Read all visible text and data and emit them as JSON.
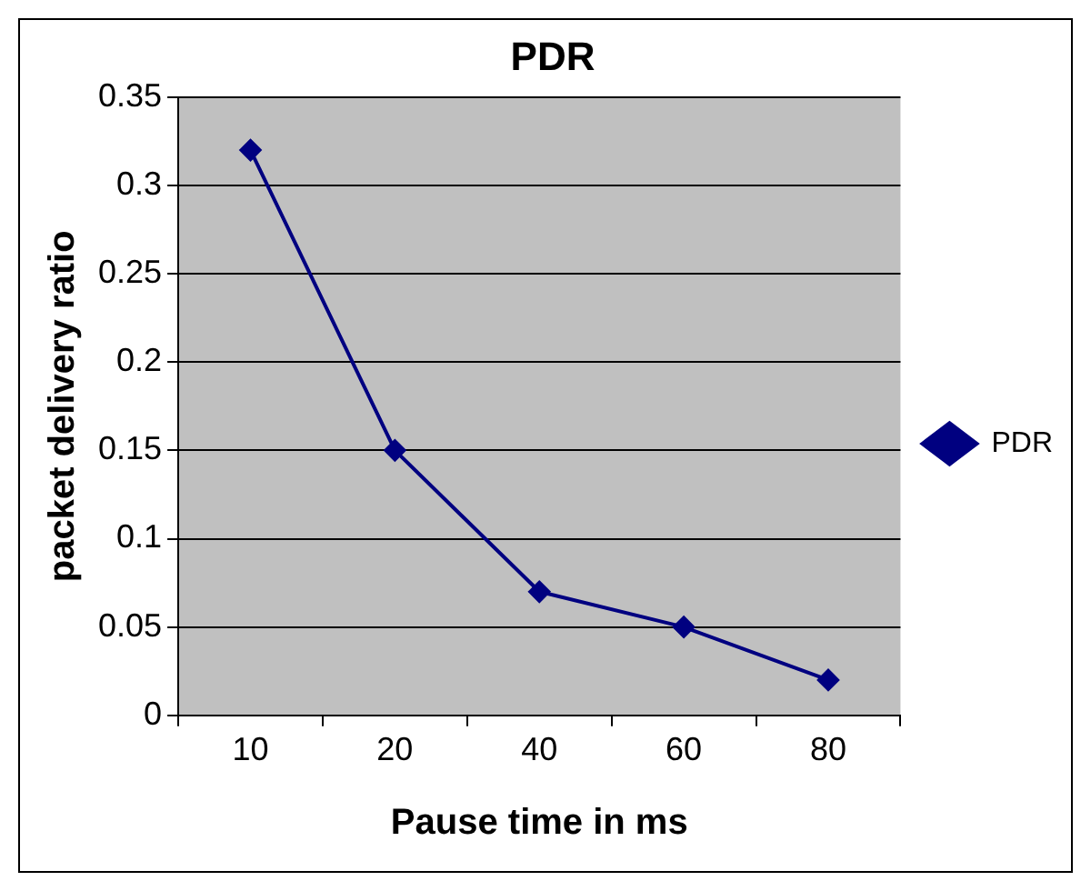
{
  "chart_data": {
    "type": "line",
    "title": "PDR",
    "xlabel": "Pause time in ms",
    "ylabel": "packet delivery ratio",
    "categories": [
      "10",
      "20",
      "40",
      "60",
      "80"
    ],
    "series": [
      {
        "name": "PDR",
        "color": "#000080",
        "values": [
          0.32,
          0.15,
          0.07,
          0.05,
          0.02
        ]
      }
    ],
    "ylim": [
      0,
      0.35
    ],
    "yticks": [
      0,
      0.05,
      0.1,
      0.15,
      0.2,
      0.25,
      0.3,
      0.35
    ],
    "grid": "y",
    "legend": "right",
    "marker": "diamond",
    "line_style": "solid"
  }
}
